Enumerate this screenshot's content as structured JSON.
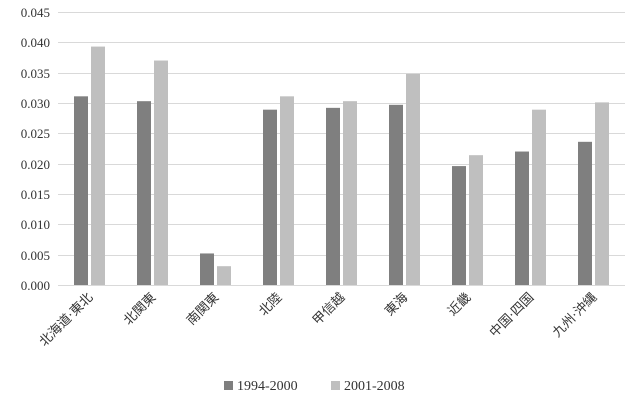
{
  "chart_data": {
    "type": "bar",
    "title": "",
    "xlabel": "",
    "ylabel": "",
    "ylim": [
      0,
      0.045
    ],
    "yticks": [
      "0.000",
      "0.005",
      "0.010",
      "0.015",
      "0.020",
      "0.025",
      "0.030",
      "0.035",
      "0.040",
      "0.045"
    ],
    "grid": true,
    "legend_position": "bottom",
    "categories": [
      "北海道·東北",
      "北関東",
      "南関東",
      "北陸",
      "甲信越",
      "東海",
      "近畿",
      "中国·四国",
      "九州·沖縄"
    ],
    "series": [
      {
        "name": "1994-2000",
        "color": "#7f7f7f",
        "values": [
          0.0311,
          0.0303,
          0.0052,
          0.0289,
          0.0292,
          0.0297,
          0.0196,
          0.022,
          0.0236
        ]
      },
      {
        "name": "2001-2008",
        "color": "#bfbfbf",
        "values": [
          0.0393,
          0.037,
          0.0031,
          0.0311,
          0.0303,
          0.0348,
          0.0214,
          0.0289,
          0.0301
        ]
      }
    ]
  }
}
